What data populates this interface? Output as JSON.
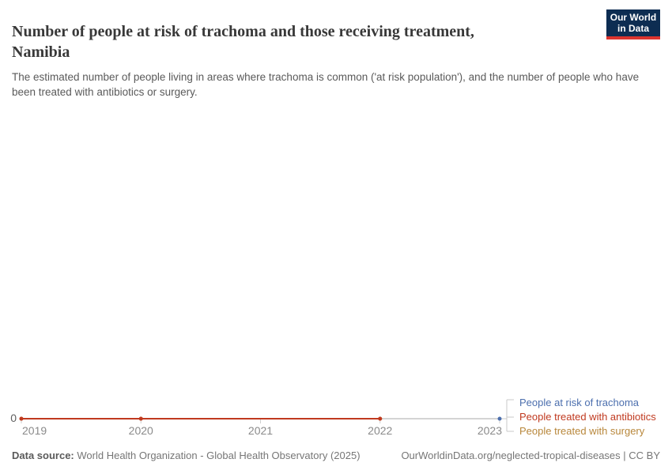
{
  "header": {
    "title_lines": [
      "Number of people at risk of trachoma and those receiving treatment,",
      "Namibia"
    ],
    "subtitle": "The estimated number of people living in areas where trachoma is common ('at risk population'), and the number of people who have been treated with antibiotics or surgery.",
    "logo": {
      "line1": "Our World",
      "line2": "in Data",
      "bg_color": "#0d2d52",
      "accent_color": "#dc352f"
    }
  },
  "chart_data": {
    "type": "line",
    "title": "Number of people at risk of trachoma and those receiving treatment, Namibia",
    "x_range": [
      2019,
      2023
    ],
    "x_ticks": [
      "2019",
      "2020",
      "2021",
      "2022",
      "2023"
    ],
    "y_tick_label": "0",
    "ylim": [
      0,
      0
    ],
    "grid": false,
    "legend_position": "right",
    "series": [
      {
        "name": "People at risk of trachoma",
        "color": "#4c6fae",
        "years": [
          2023
        ],
        "values": [
          0
        ]
      },
      {
        "name": "People treated with antibiotics",
        "color": "#c0391f",
        "years": [
          2019,
          2020,
          2022
        ],
        "values": [
          0,
          0,
          0
        ]
      },
      {
        "name": "People treated with surgery",
        "color": "#b8873b",
        "years": [
          2019,
          2020,
          2022
        ],
        "values": [
          0,
          0,
          0
        ]
      }
    ]
  },
  "footer": {
    "source_label": "Data source:",
    "source_text": "World Health Organization - Global Health Observatory (2025)",
    "credit": "OurWorldinData.org/neglected-tropical-diseases | CC BY"
  }
}
